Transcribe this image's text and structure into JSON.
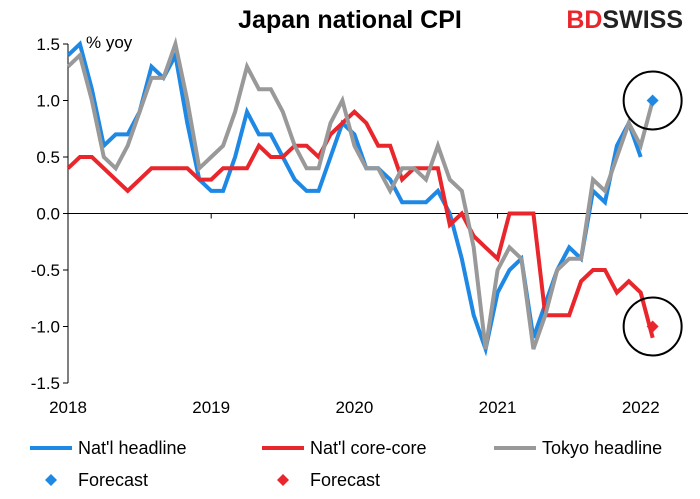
{
  "chart_data": {
    "type": "line",
    "title": "Japan national CPI",
    "unit_label": "% yoy",
    "ylim": [
      -1.5,
      1.5
    ],
    "y_ticks": [
      1.5,
      1.0,
      0.5,
      0.0,
      -0.5,
      -1.0,
      -1.5
    ],
    "y_tick_labels": [
      "1.5",
      "1.0",
      "0.5",
      "0.0",
      "-0.5",
      "-1.0",
      "-1.5"
    ],
    "x_ticks": [
      2018,
      2019,
      2020,
      2021,
      2022
    ],
    "x_tick_labels": [
      "2018",
      "2019",
      "2020",
      "2021",
      "2022"
    ],
    "xlim": [
      2018.0,
      2022.33
    ],
    "grid": false,
    "legend_position": "bottom",
    "series": [
      {
        "name": "Nat'l headline",
        "color": "#1e88e5",
        "x_start": 2018.0,
        "step": 0.0833333,
        "values": [
          1.4,
          1.5,
          1.1,
          0.6,
          0.7,
          0.7,
          0.9,
          1.3,
          1.2,
          1.4,
          0.8,
          0.3,
          0.2,
          0.2,
          0.5,
          0.9,
          0.7,
          0.7,
          0.5,
          0.3,
          0.2,
          0.2,
          0.5,
          0.8,
          0.7,
          0.4,
          0.4,
          0.3,
          0.1,
          0.1,
          0.1,
          0.2,
          0.0,
          -0.4,
          -0.9,
          -1.2,
          -0.7,
          -0.5,
          -0.4,
          -1.1,
          -0.8,
          -0.5,
          -0.3,
          -0.4,
          0.2,
          0.1,
          0.6,
          0.8,
          0.5
        ]
      },
      {
        "name": "Nat'l core-core",
        "color": "#e8262b",
        "x_start": 2018.0,
        "step": 0.0833333,
        "values": [
          0.4,
          0.5,
          0.5,
          0.4,
          0.3,
          0.2,
          0.3,
          0.4,
          0.4,
          0.4,
          0.4,
          0.3,
          0.3,
          0.4,
          0.4,
          0.4,
          0.6,
          0.5,
          0.5,
          0.6,
          0.6,
          0.5,
          0.7,
          0.8,
          0.9,
          0.8,
          0.6,
          0.6,
          0.3,
          0.4,
          0.4,
          0.4,
          -0.1,
          0.0,
          -0.2,
          -0.3,
          -0.4,
          0.0,
          0.0,
          0.0,
          -0.9,
          -0.9,
          -0.9,
          -0.6,
          -0.5,
          -0.5,
          -0.7,
          -0.6,
          -0.7,
          -1.1
        ]
      },
      {
        "name": "Tokyo headline",
        "color": "#999999",
        "x_start": 2018.0,
        "step": 0.0833333,
        "values": [
          1.3,
          1.4,
          1.0,
          0.5,
          0.4,
          0.6,
          0.9,
          1.2,
          1.2,
          1.5,
          1.0,
          0.4,
          0.5,
          0.6,
          0.9,
          1.3,
          1.1,
          1.1,
          0.9,
          0.6,
          0.4,
          0.4,
          0.8,
          1.0,
          0.6,
          0.4,
          0.4,
          0.2,
          0.4,
          0.4,
          0.3,
          0.6,
          0.3,
          0.2,
          -0.3,
          -1.2,
          -0.5,
          -0.3,
          -0.4,
          -1.2,
          -0.9,
          -0.5,
          -0.4,
          -0.4,
          0.3,
          0.2,
          0.5,
          0.8,
          0.6,
          1.0
        ]
      }
    ],
    "forecasts": [
      {
        "name": "Forecast",
        "color": "#1e88e5",
        "x": 2022.083,
        "y": 1.0
      },
      {
        "name": "Forecast",
        "color": "#e8262b",
        "x": 2022.083,
        "y": -1.0
      }
    ],
    "annotations": [
      "circle around headline forecast",
      "circle around core-core forecast"
    ]
  },
  "brand": {
    "part1": "BD",
    "part2": "SWISS"
  },
  "legend": [
    {
      "label": "Nat'l headline",
      "kind": "line",
      "color": "#1e88e5"
    },
    {
      "label": "Nat'l core-core",
      "kind": "line",
      "color": "#e8262b"
    },
    {
      "label": "Tokyo headline",
      "kind": "line",
      "color": "#999999"
    },
    {
      "label": "Forecast",
      "kind": "diamond",
      "color": "#1e88e5"
    },
    {
      "label": "Forecast",
      "kind": "diamond",
      "color": "#e8262b"
    }
  ]
}
